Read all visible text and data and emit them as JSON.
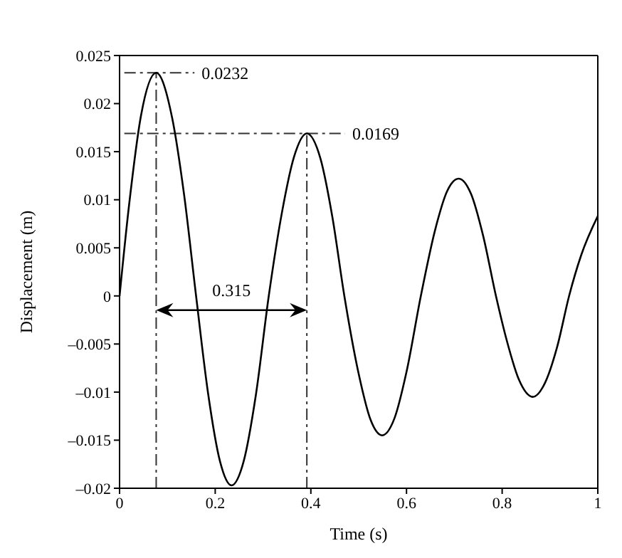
{
  "chart_data": {
    "type": "line",
    "xlabel": "Time (s)",
    "ylabel": "Displacement (m)",
    "x": [
      0,
      0.02,
      0.045,
      0.0766,
      0.11,
      0.135,
      0.16,
      0.185,
      0.21,
      0.234,
      0.26,
      0.285,
      0.312,
      0.34,
      0.365,
      0.3916,
      0.42,
      0.445,
      0.47,
      0.5,
      0.525,
      0.549,
      0.575,
      0.6,
      0.63,
      0.66,
      0.685,
      0.709,
      0.735,
      0.76,
      0.787,
      0.81,
      0.835,
      0.864,
      0.89,
      0.915,
      0.94,
      0.965,
      1
    ],
    "series": [
      {
        "color": "#000000",
        "values": [
          0,
          0.0095,
          0.0188,
          0.0232,
          0.0185,
          0.0105,
          0,
          -0.0101,
          -0.0172,
          -0.0197,
          -0.0171,
          -0.0103,
          0,
          0.0088,
          0.0145,
          0.0169,
          0.0143,
          0.0082,
          0,
          -0.0081,
          -0.0129,
          -0.0145,
          -0.0127,
          -0.0079,
          0,
          0.0069,
          0.0109,
          0.0122,
          0.0106,
          0.0063,
          0,
          -0.0047,
          -0.0087,
          -0.0105,
          -0.009,
          -0.0053,
          0,
          0.0042,
          0.0083
        ]
      }
    ],
    "xlim": [
      0,
      1
    ],
    "xticks": [
      0,
      0.2,
      0.4,
      0.6,
      0.8,
      1
    ],
    "ylim": [
      -0.02,
      0.025
    ],
    "yticks": [
      {
        "value": -0.02,
        "label": "–0.02"
      },
      {
        "value": -0.015,
        "label": "–0.015"
      },
      {
        "value": -0.01,
        "label": "–0.01"
      },
      {
        "value": -0.005,
        "label": "–0.005"
      },
      0,
      0.005,
      0.01,
      0.015,
      0.02,
      0.025
    ],
    "ref_lines": [
      {
        "axis": "y",
        "value": 0.0232,
        "label": "0.0232",
        "line_style": "dashed"
      },
      {
        "axis": "y",
        "value": 0.0169,
        "label": "0.0169",
        "line_style": "dashed"
      },
      {
        "axis": "x",
        "value": 0.0766,
        "line_style": "dashed"
      },
      {
        "axis": "x",
        "value": 0.3916,
        "line_style": "dashed"
      }
    ],
    "annotations": [
      "0.315"
    ],
    "grid": false,
    "legend": false,
    "marker": "none",
    "line_style": "solid"
  }
}
